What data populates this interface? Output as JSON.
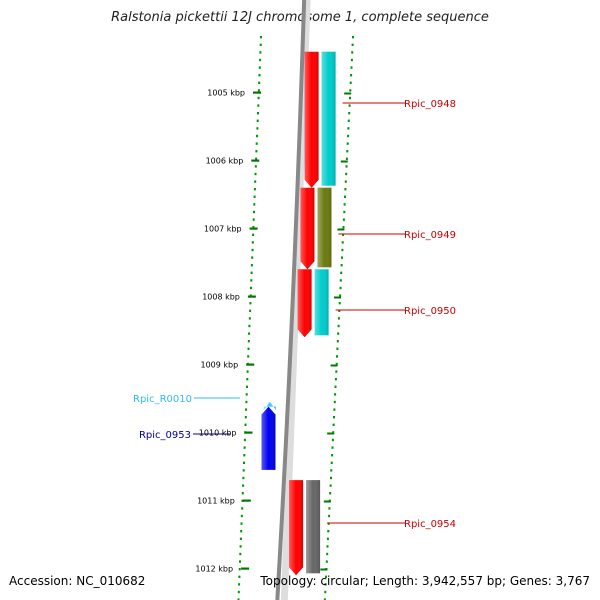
{
  "header": {
    "title": "Ralstonia pickettii 12J chromosome 1, complete sequence"
  },
  "footer": {
    "accession": "Accession: NC_010682",
    "topology": "Topology: circular; Length: 3,942,557 bp; Genes: 3,767"
  },
  "scale": {
    "ticks": [
      {
        "label": "1005 kbp"
      },
      {
        "label": "1006 kbp"
      },
      {
        "label": "1007 kbp"
      },
      {
        "label": "1008 kbp"
      },
      {
        "label": "1009 kbp"
      },
      {
        "label": "1010 kbp"
      },
      {
        "label": "1011 kbp"
      },
      {
        "label": "1012 kbp"
      }
    ]
  },
  "features": [
    {
      "name": "Rpic_0948",
      "strand": "+",
      "start_kbp": 1004.4,
      "end_kbp": 1006.4,
      "cds_color": "#ff0000",
      "domain_color": "#00cccc",
      "label_color": "#cc0000"
    },
    {
      "name": "Rpic_0949",
      "strand": "+",
      "start_kbp": 1006.4,
      "end_kbp": 1007.6,
      "cds_color": "#ff0000",
      "domain_color": "#6b7a10",
      "label_color": "#cc0000"
    },
    {
      "name": "Rpic_0950",
      "strand": "+",
      "start_kbp": 1007.6,
      "end_kbp": 1008.6,
      "cds_color": "#ff0000",
      "domain_color": "#00cccc",
      "label_color": "#cc0000"
    },
    {
      "name": "Rpic_R0010",
      "strand": "-",
      "start_kbp": 1009.55,
      "end_kbp": 1009.62,
      "cds_color": "#33ccff",
      "label_color": "#33bbee"
    },
    {
      "name": "Rpic_0953",
      "strand": "-",
      "start_kbp": 1009.62,
      "end_kbp": 1010.55,
      "cds_color": "#0000ee",
      "label_color": "#000099"
    },
    {
      "name": "Rpic_0954",
      "strand": "+",
      "start_kbp": 1010.7,
      "end_kbp": 1012.1,
      "cds_color": "#ff0000",
      "domain_color": "#666666",
      "label_color": "#cc0000"
    }
  ],
  "colors": {
    "backbone": "#888888",
    "tick": "#007700",
    "dots": "#009900"
  }
}
